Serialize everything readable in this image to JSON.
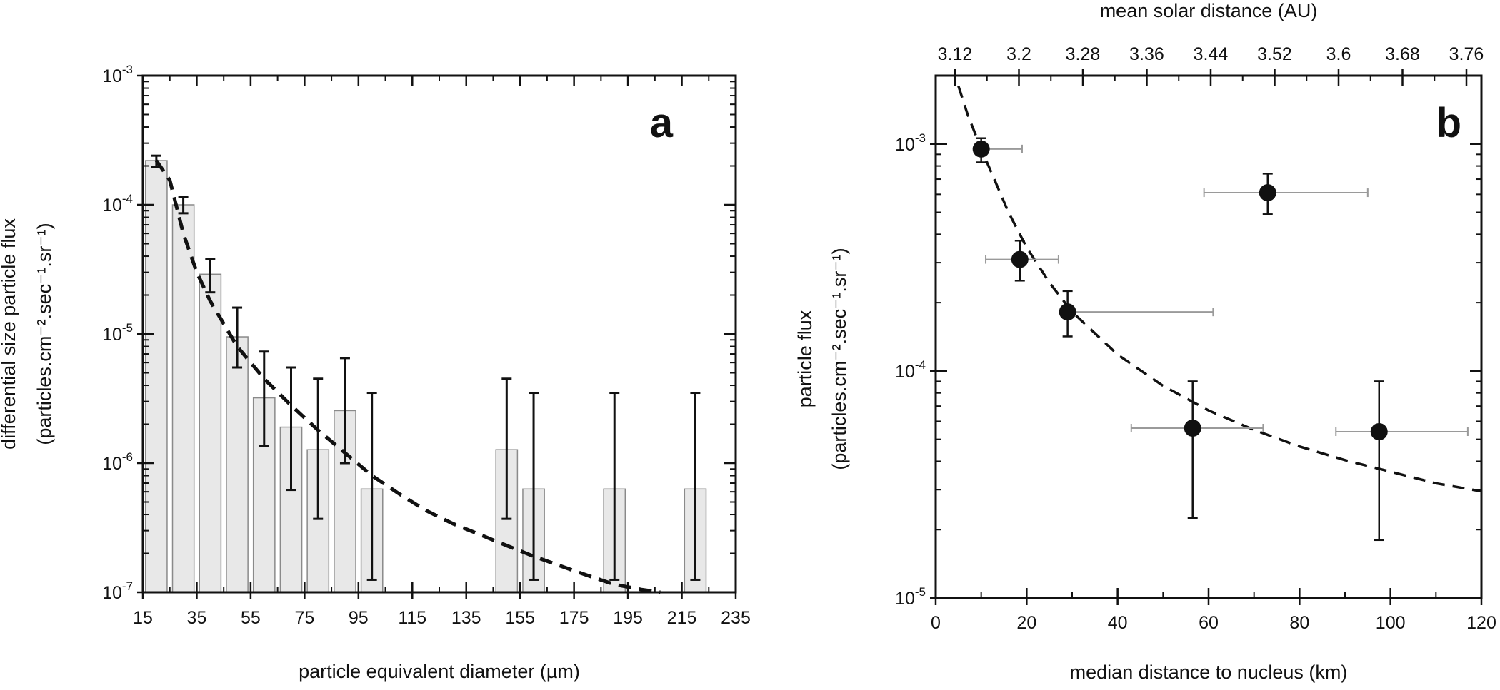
{
  "chart_data": [
    {
      "panel_label": "a",
      "type": "bar",
      "xlabel": "particle equivalent diameter (µm)",
      "ylabel_line1": "differential size particle flux",
      "ylabel_line2": "(particles.cm⁻².sec⁻¹.sr⁻¹)",
      "xlim": [
        15,
        235
      ],
      "ylim": [
        1e-07,
        0.001
      ],
      "yscale": "log",
      "x_ticks": [
        "15",
        "35",
        "55",
        "75",
        "95",
        "115",
        "135",
        "155",
        "175",
        "195",
        "215",
        "235"
      ],
      "y_ticks": [
        {
          "value": 1e-07,
          "base": "10",
          "exp": "-7"
        },
        {
          "value": 1e-06,
          "base": "10",
          "exp": "-6"
        },
        {
          "value": 1e-05,
          "base": "10",
          "exp": "-5"
        },
        {
          "value": 0.0001,
          "base": "10",
          "exp": "-4"
        },
        {
          "value": 0.001,
          "base": "10",
          "exp": "-3"
        }
      ],
      "bar_width": 8,
      "bars": [
        {
          "x": 20,
          "value": 0.00022,
          "err_low": 0.000195,
          "err_high": 0.00024
        },
        {
          "x": 30,
          "value": 0.0001,
          "err_low": 8.6e-05,
          "err_high": 0.000115
        },
        {
          "x": 40,
          "value": 2.9e-05,
          "err_low": 2.1e-05,
          "err_high": 3.8e-05
        },
        {
          "x": 50,
          "value": 9.5e-06,
          "err_low": 5.5e-06,
          "err_high": 1.6e-05
        },
        {
          "x": 60,
          "value": 3.2e-06,
          "err_low": 1.35e-06,
          "err_high": 7.3e-06
        },
        {
          "x": 70,
          "value": 1.9e-06,
          "err_low": 6.2e-07,
          "err_high": 5.5e-06
        },
        {
          "x": 80,
          "value": 1.27e-06,
          "err_low": 3.7e-07,
          "err_high": 4.5e-06
        },
        {
          "x": 90,
          "value": 2.55e-06,
          "err_low": 1e-06,
          "err_high": 6.5e-06
        },
        {
          "x": 100,
          "value": 6.3e-07,
          "err_low": 1.25e-07,
          "err_high": 3.5e-06
        },
        {
          "x": 150,
          "value": 1.27e-06,
          "err_low": 3.7e-07,
          "err_high": 4.5e-06
        },
        {
          "x": 160,
          "value": 6.3e-07,
          "err_low": 1.25e-07,
          "err_high": 3.5e-06
        },
        {
          "x": 190,
          "value": 6.3e-07,
          "err_low": 1.25e-07,
          "err_high": 3.5e-06
        },
        {
          "x": 220,
          "value": 6.3e-07,
          "err_low": 1.25e-07,
          "err_high": 3.5e-06
        }
      ],
      "fit_line": {
        "style": "dashed",
        "x": [
          20,
          25,
          30,
          35,
          40,
          45,
          50,
          60,
          70,
          80,
          90,
          100,
          110,
          120,
          130,
          140,
          150,
          160,
          170,
          180,
          190,
          200,
          207
        ],
        "y": [
          0.00022,
          0.000155,
          6e-05,
          3e-05,
          1.8e-05,
          1.2e-05,
          8e-06,
          4.5e-06,
          2.8e-06,
          1.8e-06,
          1.2e-06,
          8e-07,
          5.8e-07,
          4.3e-07,
          3.4e-07,
          2.8e-07,
          2.3e-07,
          1.9e-07,
          1.6e-07,
          1.35e-07,
          1.15e-07,
          1.05e-07,
          1e-07
        ]
      }
    },
    {
      "panel_label": "b",
      "type": "scatter",
      "xlabel": "median distance to nucleus (km)",
      "x2label": "mean solar distance (AU)",
      "ylabel_line1": "particle flux",
      "ylabel_line2": "(particles.cm⁻².sec⁻¹.sr⁻¹)",
      "xlim": [
        0,
        120
      ],
      "ylim": [
        1e-05,
        0.002
      ],
      "yscale": "log",
      "x_ticks": [
        "0",
        "20",
        "40",
        "60",
        "80",
        "100",
        "120"
      ],
      "x2_ticks": [
        "3.12",
        "3.2",
        "3.28",
        "3.36",
        "3.44",
        "3.52",
        "3.6",
        "3.68",
        "3.76"
      ],
      "y_ticks": [
        {
          "value": 1e-05,
          "base": "10",
          "exp": "-5"
        },
        {
          "value": 0.0001,
          "base": "10",
          "exp": "-4"
        },
        {
          "value": 0.001,
          "base": "10",
          "exp": "-3"
        }
      ],
      "points": [
        {
          "x": 10,
          "y": 0.00095,
          "y_low": 0.00083,
          "y_high": 0.00106,
          "x_low": 10,
          "x_high": 19
        },
        {
          "x": 18.5,
          "y": 0.00031,
          "y_low": 0.00025,
          "y_high": 0.000375,
          "x_low": 11,
          "x_high": 27
        },
        {
          "x": 29,
          "y": 0.000182,
          "y_low": 0.000142,
          "y_high": 0.000225,
          "x_low": 29,
          "x_high": 61
        },
        {
          "x": 56.5,
          "y": 5.6e-05,
          "y_low": 2.25e-05,
          "y_high": 9e-05,
          "x_low": 43,
          "x_high": 72
        },
        {
          "x": 73,
          "y": 0.00061,
          "y_low": 0.00049,
          "y_high": 0.00074,
          "x_low": 59,
          "x_high": 95
        },
        {
          "x": 97.5,
          "y": 5.4e-05,
          "y_low": 1.8e-05,
          "y_high": 9e-05,
          "x_low": 88,
          "x_high": 117
        }
      ],
      "fit_line": {
        "style": "dashed",
        "x": [
          5,
          7,
          10,
          13,
          16,
          20,
          25,
          30,
          40,
          50,
          60,
          70,
          80,
          90,
          100,
          110,
          120
        ],
        "y": [
          0.0018,
          0.00135,
          0.00095,
          0.00069,
          0.0005,
          0.00035,
          0.000245,
          0.000182,
          0.000118,
          8.6e-05,
          6.7e-05,
          5.5e-05,
          4.65e-05,
          4.05e-05,
          3.6e-05,
          3.2e-05,
          2.95e-05
        ]
      }
    }
  ]
}
